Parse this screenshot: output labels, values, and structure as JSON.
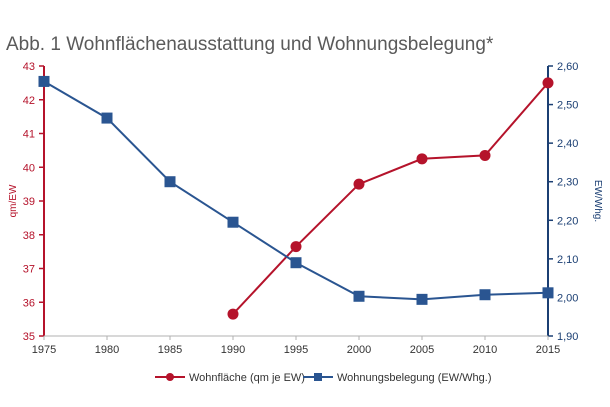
{
  "chart_data": {
    "type": "line",
    "title": "Abb. 1 Wohnflächenausstattung und Wohnungsbelegung*",
    "x": [
      1975,
      1980,
      1985,
      1990,
      1995,
      2000,
      2005,
      2010,
      2015
    ],
    "x_tick_labels": [
      "1975",
      "1980",
      "1985",
      "1990",
      "1995",
      "2000",
      "2005",
      "2010",
      "2015"
    ],
    "y_left": {
      "label": "qm/EW",
      "range": [
        35,
        43
      ],
      "ticks": [
        "35",
        "36",
        "37",
        "38",
        "39",
        "40",
        "41",
        "42",
        "43"
      ],
      "color": "#b5132b"
    },
    "y_right": {
      "label": "EW/Whg.",
      "range": [
        1.9,
        2.6
      ],
      "ticks": [
        "1,90",
        "2,00",
        "2,10",
        "2,20",
        "2,30",
        "2,40",
        "2,50",
        "2,60"
      ],
      "color": "#1b3f73"
    },
    "grid": false,
    "legend_position": "bottom",
    "series": [
      {
        "name": "Wohnfläche (qm je EW)",
        "axis": "left",
        "marker": "circle",
        "color": "#b5132b",
        "values": [
          null,
          null,
          null,
          35.65,
          37.65,
          39.5,
          40.25,
          40.35,
          42.5
        ]
      },
      {
        "name": "Wohnungsbelegung (EW/Whg.)",
        "axis": "right",
        "marker": "square",
        "color": "#2a5591",
        "values": [
          2.56,
          2.465,
          2.3,
          2.195,
          2.09,
          2.003,
          1.995,
          2.007,
          2.012
        ]
      }
    ]
  }
}
